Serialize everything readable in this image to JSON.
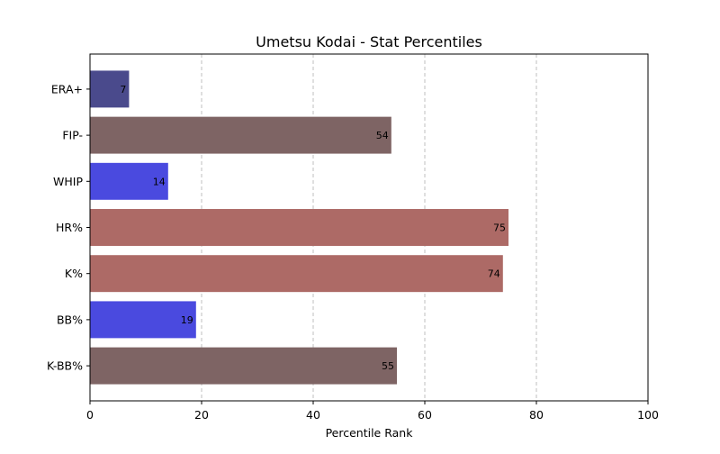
{
  "chart_data": {
    "type": "bar",
    "orientation": "horizontal",
    "title": "Umetsu Kodai - Stat Percentiles",
    "xlabel": "Percentile Rank",
    "ylabel": "",
    "xlim": [
      0,
      100
    ],
    "xticks": [
      0,
      20,
      40,
      60,
      80,
      100
    ],
    "grid": "x dashed",
    "categories": [
      "ERA+",
      "FIP-",
      "WHIP",
      "HR%",
      "K%",
      "BB%",
      "K-BB%"
    ],
    "values": [
      7,
      54,
      14,
      75,
      74,
      19,
      55
    ],
    "bar_colors": [
      "#4a4a8c",
      "#7e6464",
      "#4a4adf",
      "#ad6a66",
      "#ad6a66",
      "#4a4adf",
      "#7e6464"
    ],
    "data_labels": [
      "7",
      "54",
      "14",
      "75",
      "74",
      "19",
      "55"
    ]
  }
}
